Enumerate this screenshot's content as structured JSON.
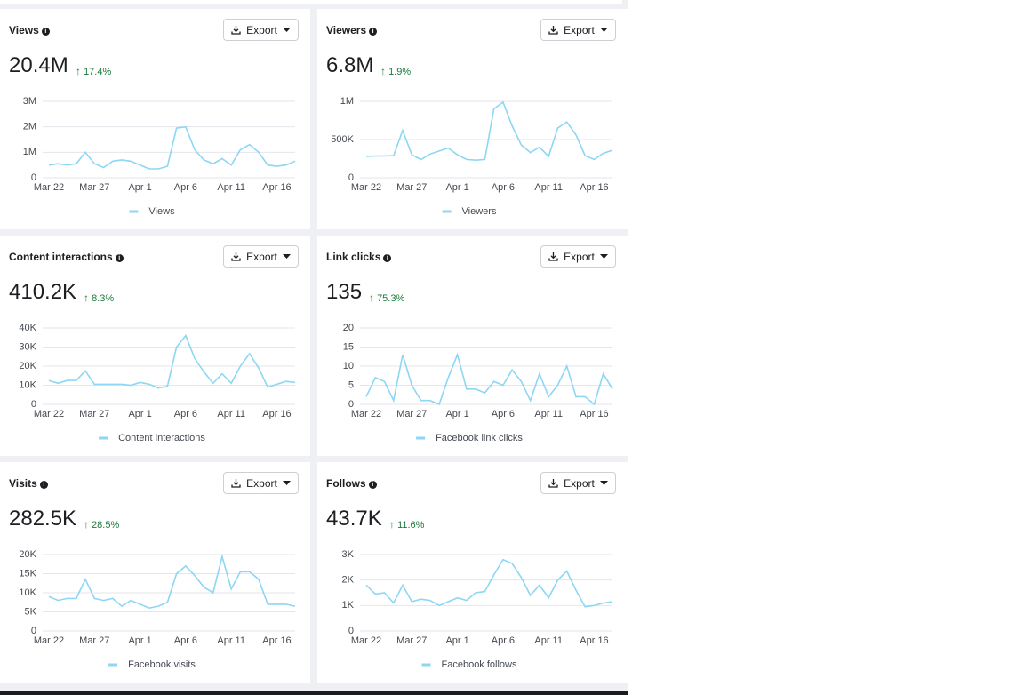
{
  "x_categories": [
    "Mar 22",
    null,
    null,
    null,
    null,
    "Mar 27",
    null,
    null,
    null,
    null,
    "Apr 1",
    null,
    null,
    null,
    null,
    "Apr 6",
    null,
    null,
    null,
    null,
    "Apr 11",
    null,
    null,
    null,
    null,
    "Apr 16",
    null,
    null
  ],
  "cards": [
    {
      "title": "Views",
      "value": "20.4M",
      "change": "17.4%",
      "export": "Export",
      "legend": "Views",
      "ylim": [
        0,
        3000000
      ],
      "yticks": [
        0,
        {
          "value": 1000000,
          "label": "1M"
        },
        {
          "value": 2000000,
          "label": "2M"
        },
        {
          "value": 3000000,
          "label": "3M"
        }
      ],
      "values": [
        500000,
        550000,
        500000,
        550000,
        1000000,
        550000,
        400000,
        650000,
        700000,
        650000,
        500000,
        350000,
        350000,
        450000,
        1950000,
        2000000,
        1100000,
        700000,
        550000,
        750000,
        500000,
        1100000,
        1300000,
        1000000,
        500000,
        450000,
        500000,
        650000
      ]
    },
    {
      "title": "Viewers",
      "value": "6.8M",
      "change": "1.9%",
      "export": "Export",
      "legend": "Viewers",
      "ylim": [
        0,
        1000000
      ],
      "yticks": [
        0,
        {
          "value": 500000,
          "label": "500K"
        },
        {
          "value": 1000000,
          "label": "1M"
        }
      ],
      "values": [
        280000,
        285000,
        285000,
        290000,
        620000,
        300000,
        240000,
        310000,
        350000,
        390000,
        300000,
        240000,
        230000,
        240000,
        900000,
        990000,
        680000,
        430000,
        330000,
        400000,
        280000,
        650000,
        730000,
        560000,
        290000,
        240000,
        320000,
        360000
      ]
    },
    {
      "title": "Content interactions",
      "value": "410.2K",
      "change": "8.3%",
      "export": "Export",
      "legend": "Content interactions",
      "ylim": [
        0,
        40000
      ],
      "yticks": [
        0,
        {
          "value": 10000,
          "label": "10K"
        },
        {
          "value": 20000,
          "label": "20K"
        },
        {
          "value": 30000,
          "label": "30K"
        },
        {
          "value": 40000,
          "label": "40K"
        }
      ],
      "values": [
        12500,
        11000,
        12500,
        12500,
        17500,
        10500,
        10500,
        10500,
        10500,
        10000,
        11500,
        10500,
        8500,
        9500,
        30000,
        36000,
        24000,
        17000,
        11000,
        16000,
        11000,
        20000,
        26500,
        19000,
        9000,
        10500,
        12000,
        11500
      ]
    },
    {
      "title": "Link clicks",
      "value": "135",
      "change": "75.3%",
      "export": "Export",
      "legend": "Facebook link clicks",
      "ylim": [
        0,
        20
      ],
      "yticks": [
        0,
        5,
        10,
        15,
        20
      ],
      "values": [
        2,
        7,
        6,
        1,
        13,
        5,
        1,
        1,
        0,
        7,
        13,
        4,
        4,
        3,
        6,
        5,
        9,
        6,
        1,
        8,
        2,
        5,
        10,
        2,
        2,
        0,
        8,
        4
      ]
    },
    {
      "title": "Visits",
      "value": "282.5K",
      "change": "28.5%",
      "export": "Export",
      "legend": "Facebook visits",
      "ylim": [
        0,
        20000
      ],
      "yticks": [
        0,
        {
          "value": 5000,
          "label": "5K"
        },
        {
          "value": 10000,
          "label": "10K"
        },
        {
          "value": 15000,
          "label": "15K"
        },
        {
          "value": 20000,
          "label": "20K"
        }
      ],
      "values": [
        9000,
        8000,
        8500,
        8500,
        13500,
        8500,
        8000,
        8500,
        6500,
        8000,
        7000,
        6000,
        6500,
        7500,
        15000,
        17000,
        14500,
        11500,
        10000,
        19500,
        11000,
        15500,
        15500,
        13500,
        7000,
        7000,
        7000,
        6500
      ]
    },
    {
      "title": "Follows",
      "value": "43.7K",
      "change": "11.6%",
      "export": "Export",
      "legend": "Facebook follows",
      "ylim": [
        0,
        3000
      ],
      "yticks": [
        0,
        {
          "value": 1000,
          "label": "1K"
        },
        {
          "value": 2000,
          "label": "2K"
        },
        {
          "value": 3000,
          "label": "3K"
        }
      ],
      "values": [
        1800,
        1450,
        1500,
        1100,
        1800,
        1150,
        1250,
        1200,
        1000,
        1150,
        1300,
        1200,
        1500,
        1550,
        2200,
        2800,
        2650,
        2100,
        1400,
        1800,
        1300,
        2000,
        2350,
        1600,
        950,
        1000,
        1100,
        1150
      ]
    }
  ]
}
